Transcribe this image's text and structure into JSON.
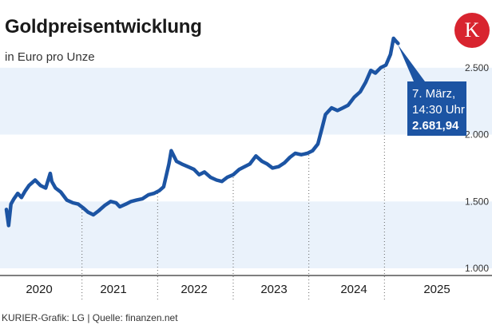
{
  "header": {
    "title": "Goldpreisentwicklung",
    "subtitle": "in Euro pro Unze",
    "logo_letter": "K"
  },
  "footer": {
    "source": "KURIER-Grafik: LG | Quelle: finanzen.net"
  },
  "colors": {
    "line": "#1c54a3",
    "band": "#eaf2fb",
    "annotation": "#1c54a3",
    "logo": "#d8242f"
  },
  "chart_data": {
    "type": "line",
    "title": "Goldpreisentwicklung",
    "ylabel": "in Euro pro Unze",
    "ylim": [
      1000,
      2720
    ],
    "yticks": [
      1000,
      1500,
      2000,
      2500
    ],
    "ytick_labels": [
      "1.000",
      "1.500",
      "2.000",
      "2.500"
    ],
    "xlim": [
      2020.0,
      2025.25
    ],
    "xticks": [
      "2020",
      "2021",
      "2022",
      "2023",
      "2024",
      "2025"
    ],
    "year_dividers": [
      2021,
      2022,
      2023,
      2024,
      2025
    ],
    "series": [
      {
        "name": "Goldpreis",
        "x": [
          2020.0,
          2020.03,
          2020.06,
          2020.1,
          2020.15,
          2020.2,
          2020.25,
          2020.3,
          2020.38,
          2020.45,
          2020.52,
          2020.58,
          2020.6,
          2020.65,
          2020.72,
          2020.8,
          2020.88,
          2020.95,
          2021.02,
          2021.08,
          2021.15,
          2021.22,
          2021.3,
          2021.38,
          2021.45,
          2021.5,
          2021.58,
          2021.65,
          2021.72,
          2021.8,
          2021.88,
          2021.95,
          2022.02,
          2022.08,
          2022.15,
          2022.18,
          2022.25,
          2022.32,
          2022.4,
          2022.48,
          2022.55,
          2022.62,
          2022.7,
          2022.78,
          2022.85,
          2022.92,
          2023.0,
          2023.08,
          2023.15,
          2023.22,
          2023.3,
          2023.38,
          2023.45,
          2023.52,
          2023.6,
          2023.68,
          2023.75,
          2023.82,
          2023.9,
          2023.98,
          2024.05,
          2024.12,
          2024.18,
          2024.22,
          2024.3,
          2024.38,
          2024.45,
          2024.52,
          2024.6,
          2024.68,
          2024.75,
          2024.82,
          2024.88,
          2024.95,
          2025.02,
          2025.08,
          2025.12,
          2025.15,
          2025.18
        ],
        "values": [
          1440,
          1320,
          1480,
          1520,
          1560,
          1530,
          1580,
          1620,
          1660,
          1620,
          1600,
          1710,
          1650,
          1600,
          1570,
          1510,
          1490,
          1480,
          1450,
          1420,
          1400,
          1430,
          1470,
          1500,
          1490,
          1460,
          1480,
          1500,
          1510,
          1520,
          1550,
          1560,
          1580,
          1610,
          1780,
          1880,
          1800,
          1780,
          1760,
          1740,
          1700,
          1720,
          1680,
          1660,
          1650,
          1680,
          1700,
          1740,
          1760,
          1780,
          1840,
          1800,
          1780,
          1750,
          1760,
          1790,
          1830,
          1860,
          1850,
          1860,
          1880,
          1930,
          2060,
          2150,
          2200,
          2180,
          2200,
          2220,
          2280,
          2320,
          2390,
          2480,
          2460,
          2500,
          2520,
          2600,
          2720,
          2700,
          2682
        ]
      }
    ],
    "annotation": {
      "date": "7. März,",
      "time": "14:30 Uhr",
      "value": "2.681,94",
      "point": [
        2025.18,
        2681.94
      ]
    }
  }
}
